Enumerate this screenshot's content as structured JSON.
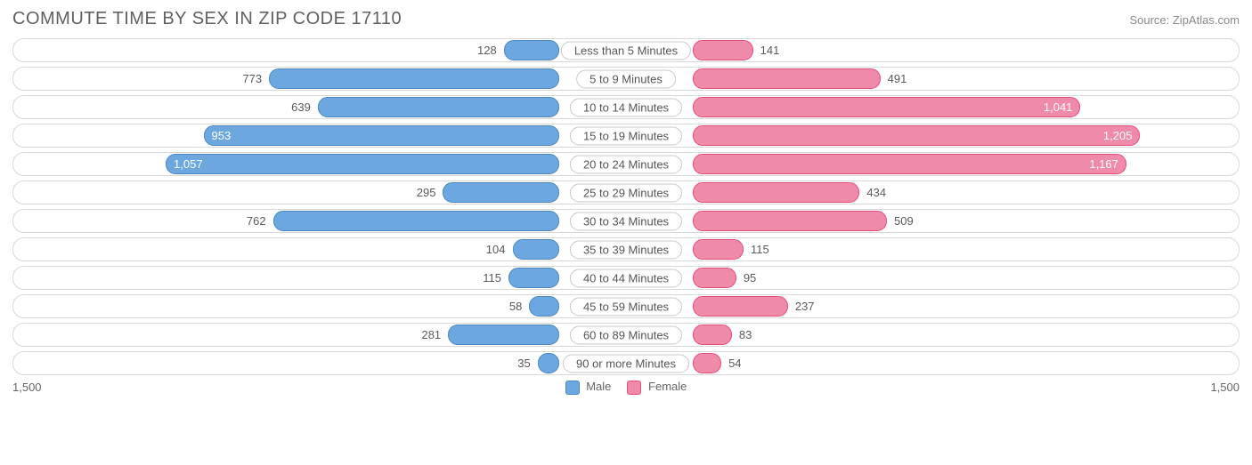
{
  "title": "COMMUTE TIME BY SEX IN ZIP CODE 17110",
  "source": "Source: ZipAtlas.com",
  "axis_max": 1500,
  "axis_left_label": "1,500",
  "axis_right_label": "1,500",
  "inside_threshold": 900,
  "colors": {
    "male_fill": "#6ca7e0",
    "male_border": "#4a87c6",
    "female_fill": "#f08aa9",
    "female_border": "#e84b7d",
    "row_border": "#d8d8d8",
    "text": "#5a5a5a",
    "title": "#606060",
    "source": "#8a8a8a",
    "background": "#ffffff"
  },
  "legend": {
    "male": "Male",
    "female": "Female"
  },
  "rows": [
    {
      "label": "Less than 5 Minutes",
      "male": 128,
      "male_txt": "128",
      "female": 141,
      "female_txt": "141"
    },
    {
      "label": "5 to 9 Minutes",
      "male": 773,
      "male_txt": "773",
      "female": 491,
      "female_txt": "491"
    },
    {
      "label": "10 to 14 Minutes",
      "male": 639,
      "male_txt": "639",
      "female": 1041,
      "female_txt": "1,041"
    },
    {
      "label": "15 to 19 Minutes",
      "male": 953,
      "male_txt": "953",
      "female": 1205,
      "female_txt": "1,205"
    },
    {
      "label": "20 to 24 Minutes",
      "male": 1057,
      "male_txt": "1,057",
      "female": 1167,
      "female_txt": "1,167"
    },
    {
      "label": "25 to 29 Minutes",
      "male": 295,
      "male_txt": "295",
      "female": 434,
      "female_txt": "434"
    },
    {
      "label": "30 to 34 Minutes",
      "male": 762,
      "male_txt": "762",
      "female": 509,
      "female_txt": "509"
    },
    {
      "label": "35 to 39 Minutes",
      "male": 104,
      "male_txt": "104",
      "female": 115,
      "female_txt": "115"
    },
    {
      "label": "40 to 44 Minutes",
      "male": 115,
      "male_txt": "115",
      "female": 95,
      "female_txt": "95"
    },
    {
      "label": "45 to 59 Minutes",
      "male": 58,
      "male_txt": "58",
      "female": 237,
      "female_txt": "237"
    },
    {
      "label": "60 to 89 Minutes",
      "male": 281,
      "male_txt": "281",
      "female": 83,
      "female_txt": "83"
    },
    {
      "label": "90 or more Minutes",
      "male": 35,
      "male_txt": "35",
      "female": 54,
      "female_txt": "54"
    }
  ]
}
